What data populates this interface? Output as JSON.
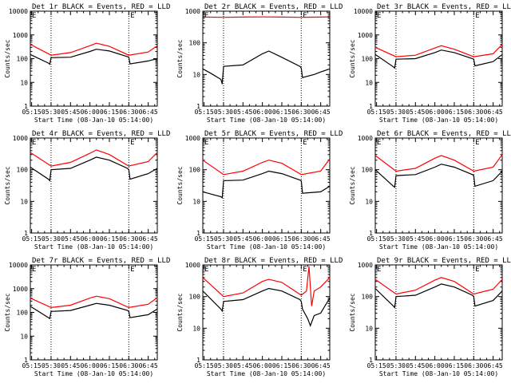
{
  "figure": {
    "xtick_labels": [
      "05:15",
      "05:30",
      "05:45",
      "06:00",
      "06:15",
      "06:30",
      "06:45"
    ],
    "xlabel": "Start Time (08-Jan-10 05:14:00)",
    "ylabel": "Counts/sec",
    "ytick_labels_4dec": [
      "1",
      "10",
      "100",
      "1000",
      "10000"
    ],
    "ytick_labels_3dec": [
      "1",
      "10",
      "100",
      "1000"
    ],
    "event_marker_text": "E",
    "colors": {
      "events": "#000000",
      "lld": "#ff0000"
    }
  },
  "chart_data": [
    {
      "type": "line",
      "title": "Det 1r BLACK = Events, RED = LLD",
      "show_xlabel": false,
      "xlim": [
        "05:14",
        "06:52"
      ],
      "ylim": [
        1,
        10000
      ],
      "yscale": "log",
      "vlines": [
        "05:30",
        "06:30"
      ],
      "event_marker": "06:30",
      "series": [
        {
          "name": "Events",
          "color": "#000000",
          "x": [
            "05:14",
            "05:28",
            "05:29",
            "05:30",
            "05:45",
            "06:00",
            "06:05",
            "06:15",
            "06:29",
            "06:30",
            "06:31",
            "06:45",
            "06:52"
          ],
          "values": [
            150,
            65,
            58,
            110,
            115,
            200,
            250,
            210,
            120,
            115,
            60,
            80,
            100
          ]
        },
        {
          "name": "LLD",
          "color": "#ff0000",
          "x": [
            "05:14",
            "05:30",
            "05:45",
            "06:00",
            "06:05",
            "06:15",
            "06:30",
            "06:45",
            "06:52"
          ],
          "values": [
            400,
            140,
            180,
            350,
            450,
            330,
            140,
            190,
            350
          ]
        }
      ]
    },
    {
      "type": "line",
      "title": "Det 2r BLACK = Events, RED = LLD",
      "show_xlabel": false,
      "xlim": [
        "05:14",
        "06:52"
      ],
      "ylim": [
        1,
        1000
      ],
      "yscale": "log",
      "vlines": [
        "05:30",
        "06:30"
      ],
      "event_marker": "06:30",
      "series": [
        {
          "name": "Events",
          "color": "#000000",
          "x": [
            "05:14",
            "05:20",
            "05:28",
            "05:29",
            "05:30",
            "05:45",
            "06:00",
            "06:05",
            "06:15",
            "06:29",
            "06:30",
            "06:31",
            "06:40",
            "06:45",
            "06:52"
          ],
          "values": [
            15,
            11,
            7,
            5,
            18,
            20,
            45,
            55,
            35,
            18,
            16,
            8,
            10,
            12,
            15
          ]
        },
        {
          "name": "LLD",
          "color": "#ff0000",
          "x": [
            "05:14",
            "05:30",
            "05:45",
            "06:00",
            "06:15",
            "06:30",
            "06:45",
            "06:52"
          ],
          "values": [
            650,
            640,
            650,
            660,
            650,
            640,
            650,
            660
          ]
        }
      ]
    },
    {
      "type": "line",
      "title": "Det 3r BLACK = Events, RED = LLD",
      "show_xlabel": false,
      "xlim": [
        "05:14",
        "06:52"
      ],
      "ylim": [
        1,
        10000
      ],
      "yscale": "log",
      "vlines": [
        "05:30",
        "06:30"
      ],
      "event_marker": "06:30",
      "series": [
        {
          "name": "Events",
          "color": "#000000",
          "x": [
            "05:14",
            "05:28",
            "05:29",
            "05:30",
            "05:45",
            "06:00",
            "06:05",
            "06:15",
            "06:29",
            "06:30",
            "06:31",
            "06:45",
            "06:52"
          ],
          "values": [
            150,
            45,
            40,
            95,
            100,
            180,
            230,
            180,
            100,
            95,
            50,
            75,
            150
          ]
        },
        {
          "name": "LLD",
          "color": "#ff0000",
          "x": [
            "05:14",
            "05:30",
            "05:45",
            "06:00",
            "06:05",
            "06:15",
            "06:30",
            "06:45",
            "06:52"
          ],
          "values": [
            300,
            120,
            140,
            280,
            350,
            250,
            120,
            160,
            400
          ]
        }
      ]
    },
    {
      "type": "line",
      "title": "Det 4r BLACK = Events, RED = LLD",
      "show_xlabel": false,
      "xlim": [
        "05:14",
        "06:52"
      ],
      "ylim": [
        1,
        1000
      ],
      "yscale": "log",
      "vlines": [
        "05:30",
        "06:30"
      ],
      "event_marker": "06:30",
      "series": [
        {
          "name": "Events",
          "color": "#000000",
          "x": [
            "05:14",
            "05:28",
            "05:29",
            "05:30",
            "05:45",
            "06:00",
            "06:05",
            "06:15",
            "06:29",
            "06:30",
            "06:31",
            "06:45",
            "06:52"
          ],
          "values": [
            120,
            50,
            45,
            100,
            110,
            200,
            250,
            200,
            110,
            100,
            50,
            75,
            110
          ]
        },
        {
          "name": "LLD",
          "color": "#ff0000",
          "x": [
            "05:14",
            "05:30",
            "05:45",
            "06:00",
            "06:05",
            "06:15",
            "06:30",
            "06:45",
            "06:52"
          ],
          "values": [
            350,
            130,
            170,
            330,
            420,
            300,
            130,
            180,
            350
          ]
        }
      ]
    },
    {
      "type": "line",
      "title": "Det 5r BLACK = Events, RED = LLD",
      "show_xlabel": false,
      "xlim": [
        "05:14",
        "06:52"
      ],
      "ylim": [
        1,
        1000
      ],
      "yscale": "log",
      "vlines": [
        "05:30",
        "06:30"
      ],
      "event_marker": "06:30",
      "series": [
        {
          "name": "Events",
          "color": "#000000",
          "x": [
            "05:14",
            "05:28",
            "05:29",
            "05:30",
            "05:45",
            "06:00",
            "06:05",
            "06:15",
            "06:29",
            "06:30",
            "06:31",
            "06:45",
            "06:52"
          ],
          "values": [
            20,
            14,
            13,
            45,
            47,
            75,
            90,
            75,
            47,
            45,
            18,
            20,
            30
          ]
        },
        {
          "name": "LLD",
          "color": "#ff0000",
          "x": [
            "05:14",
            "05:30",
            "05:45",
            "06:00",
            "06:05",
            "06:15",
            "06:30",
            "06:45",
            "06:52"
          ],
          "values": [
            200,
            70,
            90,
            170,
            200,
            160,
            70,
            90,
            220
          ]
        }
      ]
    },
    {
      "type": "line",
      "title": "Det 6r BLACK = Events, RED = LLD",
      "show_xlabel": false,
      "xlim": [
        "05:14",
        "06:52"
      ],
      "ylim": [
        1,
        1000
      ],
      "yscale": "log",
      "vlines": [
        "05:30",
        "06:30"
      ],
      "event_marker": "06:30",
      "series": [
        {
          "name": "Events",
          "color": "#000000",
          "x": [
            "05:14",
            "05:28",
            "05:29",
            "05:30",
            "05:45",
            "06:00",
            "06:05",
            "06:15",
            "06:29",
            "06:30",
            "06:31",
            "06:45",
            "06:52"
          ],
          "values": [
            100,
            30,
            28,
            65,
            70,
            120,
            150,
            120,
            70,
            65,
            30,
            45,
            90
          ]
        },
        {
          "name": "LLD",
          "color": "#ff0000",
          "x": [
            "05:14",
            "05:30",
            "05:45",
            "06:00",
            "06:05",
            "06:15",
            "06:30",
            "06:45",
            "06:52"
          ],
          "values": [
            280,
            90,
            110,
            230,
            280,
            200,
            90,
            120,
            300
          ]
        }
      ]
    },
    {
      "type": "line",
      "title": "Det 7r BLACK = Events, RED = LLD",
      "show_xlabel": true,
      "xlim": [
        "05:14",
        "06:52"
      ],
      "ylim": [
        1,
        10000
      ],
      "yscale": "log",
      "vlines": [
        "05:30",
        "06:30"
      ],
      "event_marker": "06:30",
      "series": [
        {
          "name": "Events",
          "color": "#000000",
          "x": [
            "05:14",
            "05:28",
            "05:29",
            "05:30",
            "05:45",
            "06:00",
            "06:05",
            "06:15",
            "06:29",
            "06:30",
            "06:31",
            "06:45",
            "06:52"
          ],
          "values": [
            180,
            60,
            55,
            110,
            120,
            200,
            240,
            200,
            120,
            110,
            60,
            80,
            140
          ]
        },
        {
          "name": "LLD",
          "color": "#ff0000",
          "x": [
            "05:14",
            "05:30",
            "05:45",
            "06:00",
            "06:05",
            "06:15",
            "06:30",
            "06:45",
            "06:52"
          ],
          "values": [
            400,
            160,
            200,
            400,
            480,
            380,
            160,
            220,
            420
          ]
        }
      ]
    },
    {
      "type": "line",
      "title": "Det 8r BLACK = Events, RED = LLD",
      "show_xlabel": true,
      "xlim": [
        "05:14",
        "06:52"
      ],
      "ylim": [
        1,
        1000
      ],
      "yscale": "log",
      "vlines": [
        "05:30",
        "06:30"
      ],
      "event_marker": "06:30",
      "series": [
        {
          "name": "Events",
          "color": "#000000",
          "x": [
            "05:14",
            "05:28",
            "05:29",
            "05:30",
            "05:45",
            "06:00",
            "06:05",
            "06:15",
            "06:29",
            "06:30",
            "06:31",
            "06:35",
            "06:37",
            "06:40",
            "06:45",
            "06:52"
          ],
          "values": [
            150,
            40,
            35,
            70,
            80,
            150,
            180,
            150,
            80,
            70,
            40,
            20,
            12,
            25,
            30,
            90
          ]
        },
        {
          "name": "LLD",
          "color": "#ff0000",
          "x": [
            "05:14",
            "05:30",
            "05:45",
            "06:00",
            "06:05",
            "06:15",
            "06:30",
            "06:34",
            "06:36",
            "06:38",
            "06:40",
            "06:45",
            "06:52"
          ],
          "values": [
            400,
            100,
            130,
            300,
            350,
            280,
            110,
            150,
            900,
            50,
            150,
            200,
            400
          ]
        }
      ]
    },
    {
      "type": "line",
      "title": "Det 9r BLACK = Events, RED = LLD",
      "show_xlabel": true,
      "xlim": [
        "05:14",
        "06:52"
      ],
      "ylim": [
        1,
        1000
      ],
      "yscale": "log",
      "vlines": [
        "05:30",
        "06:30"
      ],
      "event_marker": "06:30",
      "series": [
        {
          "name": "Events",
          "color": "#000000",
          "x": [
            "05:14",
            "05:28",
            "05:29",
            "05:30",
            "05:45",
            "06:00",
            "06:05",
            "06:15",
            "06:29",
            "06:30",
            "06:31",
            "06:45",
            "06:52"
          ],
          "values": [
            180,
            50,
            45,
            100,
            110,
            200,
            250,
            200,
            110,
            100,
            50,
            75,
            150
          ]
        },
        {
          "name": "LLD",
          "color": "#ff0000",
          "x": [
            "05:14",
            "05:30",
            "05:45",
            "06:00",
            "06:05",
            "06:15",
            "06:30",
            "06:45",
            "06:52"
          ],
          "values": [
            350,
            120,
            160,
            330,
            400,
            300,
            120,
            170,
            350
          ]
        }
      ]
    }
  ]
}
